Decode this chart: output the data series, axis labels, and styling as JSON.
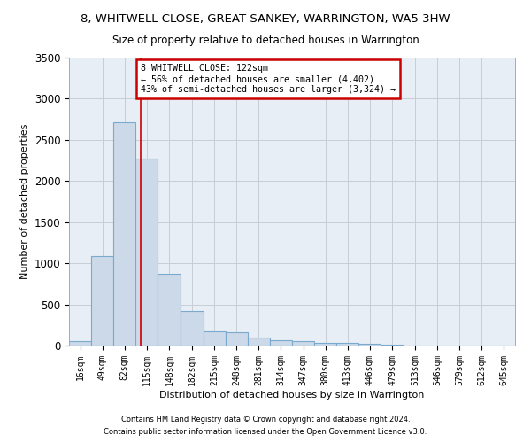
{
  "title": "8, WHITWELL CLOSE, GREAT SANKEY, WARRINGTON, WA5 3HW",
  "subtitle": "Size of property relative to detached houses in Warrington",
  "xlabel": "Distribution of detached houses by size in Warrington",
  "ylabel": "Number of detached properties",
  "bar_edges": [
    16,
    49,
    82,
    115,
    148,
    182,
    215,
    248,
    281,
    314,
    347,
    380,
    413,
    446,
    479,
    513,
    546,
    579,
    612,
    645,
    678
  ],
  "bar_heights": [
    55,
    1090,
    2710,
    2270,
    875,
    420,
    175,
    165,
    95,
    65,
    55,
    30,
    30,
    20,
    10,
    0,
    0,
    0,
    0,
    0
  ],
  "bar_color": "#ccd9e8",
  "bar_edge_color": "#7aaace",
  "property_line_x": 122,
  "annotation_text": "8 WHITWELL CLOSE: 122sqm\n← 56% of detached houses are smaller (4,402)\n43% of semi-detached houses are larger (3,324) →",
  "annotation_box_color": "#ffffff",
  "annotation_box_edge_color": "#cc0000",
  "red_line_color": "#cc0000",
  "grid_color": "#c8cdd4",
  "background_color": "#e8eef5",
  "ylim": [
    0,
    3500
  ],
  "yticks": [
    0,
    500,
    1000,
    1500,
    2000,
    2500,
    3000,
    3500
  ],
  "footnote1": "Contains HM Land Registry data © Crown copyright and database right 2024.",
  "footnote2": "Contains public sector information licensed under the Open Government Licence v3.0.",
  "title_fontsize": 9.5,
  "subtitle_fontsize": 8.5,
  "axis_label_fontsize": 8,
  "tick_label_fontsize": 7,
  "footnote_fontsize": 6
}
